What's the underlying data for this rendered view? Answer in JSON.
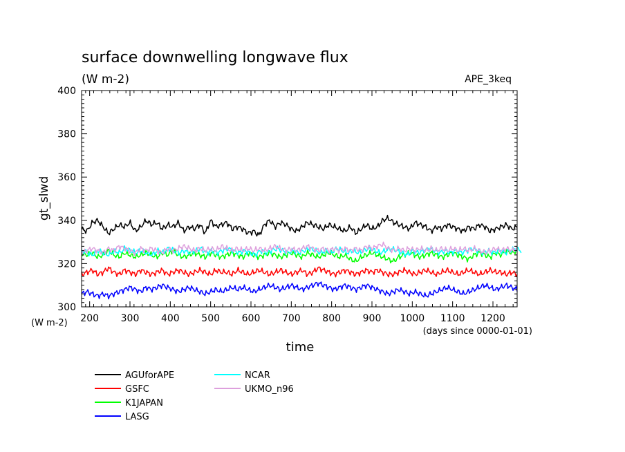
{
  "chart_data": {
    "type": "line",
    "title": "surface downwelling longwave flux",
    "units": "(W m-2)",
    "experiment": "APE_3keq",
    "xlabel": "time",
    "x_units": "(days since 0000-01-01)",
    "ylabel": "gt_slwd",
    "y_units": "(W m-2)",
    "xlim": [
      180,
      1260
    ],
    "ylim": [
      300,
      400
    ],
    "x_ticks": [
      200,
      300,
      400,
      500,
      600,
      700,
      800,
      900,
      1000,
      1100,
      1200
    ],
    "y_ticks": [
      300,
      320,
      340,
      360,
      380,
      400
    ],
    "series": [
      {
        "name": "AGUforAPE",
        "color": "#000000",
        "x_start": 180,
        "x_end": 1260,
        "values": [
          336,
          335,
          339,
          340,
          337,
          334,
          336,
          338,
          337,
          339,
          335,
          337,
          340,
          338,
          339,
          336,
          338,
          337,
          339,
          335,
          337,
          336,
          338,
          334,
          340,
          337,
          338,
          339,
          336,
          337,
          336,
          334,
          335,
          333,
          338,
          340,
          337,
          339,
          338,
          336,
          335,
          337,
          339,
          338,
          337,
          336,
          338,
          337,
          336,
          335,
          337,
          334,
          336,
          338,
          336,
          337,
          340,
          341,
          339,
          338,
          337,
          336,
          339,
          338,
          337,
          335,
          337,
          336,
          338,
          337,
          336,
          335,
          337,
          336,
          338,
          337,
          335,
          336,
          337,
          338,
          336,
          337
        ]
      },
      {
        "name": "GSFC",
        "color": "#ff0000",
        "x_start": 180,
        "x_end": 1260,
        "values": [
          315,
          316,
          317,
          315,
          316,
          318,
          316,
          315,
          317,
          316,
          315,
          317,
          316,
          315,
          316,
          317,
          315,
          316,
          317,
          316,
          315,
          316,
          317,
          316,
          315,
          317,
          316,
          316,
          315,
          317,
          316,
          315,
          316,
          317,
          316,
          315,
          316,
          317,
          316,
          315,
          316,
          317,
          315,
          316,
          318,
          317,
          316,
          315,
          316,
          317,
          316,
          315,
          316,
          317,
          316,
          317,
          316,
          315,
          315,
          316,
          317,
          316,
          315,
          316,
          317,
          316,
          315,
          316,
          317,
          316,
          315,
          316,
          317,
          316,
          315,
          316,
          317,
          316,
          316,
          315,
          316,
          315
        ]
      },
      {
        "name": "K1JAPAN",
        "color": "#00ff00",
        "x_start": 180,
        "x_end": 1260,
        "values": [
          325,
          324,
          325,
          323,
          324,
          326,
          324,
          323,
          325,
          324,
          323,
          324,
          325,
          324,
          323,
          325,
          324,
          326,
          324,
          323,
          324,
          325,
          324,
          323,
          325,
          324,
          323,
          324,
          325,
          324,
          323,
          325,
          324,
          323,
          324,
          325,
          324,
          323,
          324,
          325,
          324,
          323,
          325,
          324,
          323,
          324,
          325,
          324,
          323,
          324,
          322,
          321,
          323,
          324,
          325,
          324,
          323,
          322,
          321,
          323,
          324,
          325,
          324,
          323,
          324,
          325,
          324,
          323,
          324,
          325,
          324,
          323,
          322,
          324,
          325,
          324,
          323,
          325,
          324,
          326,
          325,
          326
        ]
      },
      {
        "name": "LASG",
        "color": "#0000ff",
        "x_start": 180,
        "x_end": 1260,
        "values": [
          306,
          307,
          306,
          305,
          306,
          305,
          306,
          307,
          308,
          309,
          308,
          307,
          309,
          308,
          309,
          310,
          309,
          308,
          307,
          308,
          309,
          308,
          307,
          306,
          307,
          308,
          307,
          308,
          309,
          308,
          309,
          308,
          307,
          308,
          309,
          310,
          309,
          308,
          309,
          310,
          309,
          308,
          309,
          310,
          311,
          310,
          309,
          308,
          309,
          310,
          309,
          308,
          309,
          310,
          309,
          308,
          307,
          306,
          307,
          308,
          307,
          306,
          307,
          306,
          305,
          306,
          307,
          308,
          309,
          308,
          307,
          306,
          307,
          308,
          309,
          310,
          309,
          308,
          309,
          310,
          309,
          308
        ]
      },
      {
        "name": "NCAR",
        "color": "#00ffff",
        "x_start": 180,
        "x_end": 1270,
        "values": [
          326,
          325,
          324,
          326,
          325,
          324,
          326,
          325,
          327,
          326,
          325,
          326,
          325,
          324,
          326,
          325,
          327,
          326,
          325,
          326,
          325,
          326,
          327,
          325,
          326,
          325,
          326,
          327,
          326,
          325,
          326,
          325,
          324,
          326,
          325,
          326,
          327,
          326,
          325,
          326,
          325,
          326,
          327,
          326,
          325,
          326,
          325,
          327,
          326,
          325,
          326,
          325,
          326,
          327,
          326,
          325,
          326,
          327,
          326,
          325,
          324,
          326,
          325,
          326,
          327,
          326,
          325,
          326,
          325,
          326,
          325,
          326,
          327,
          326,
          325,
          326,
          325,
          326,
          325,
          326,
          327,
          326
        ]
      },
      {
        "name": "UKMO_n96",
        "color": "#dda0dd",
        "x_start": 180,
        "x_end": 1260,
        "values": [
          325,
          326,
          327,
          326,
          325,
          327,
          326,
          328,
          327,
          326,
          325,
          327,
          326,
          327,
          326,
          325,
          327,
          326,
          327,
          328,
          327,
          326,
          327,
          326,
          327,
          326,
          328,
          327,
          326,
          327,
          326,
          327,
          326,
          327,
          326,
          327,
          328,
          327,
          326,
          327,
          326,
          327,
          328,
          327,
          326,
          327,
          326,
          327,
          326,
          327,
          326,
          327,
          326,
          328,
          327,
          328,
          329,
          327,
          326,
          327,
          326,
          327,
          326,
          327,
          326,
          327,
          326,
          327,
          326,
          327,
          326,
          327,
          326,
          327,
          326,
          325,
          326,
          327,
          326,
          327,
          326,
          327
        ]
      }
    ]
  }
}
